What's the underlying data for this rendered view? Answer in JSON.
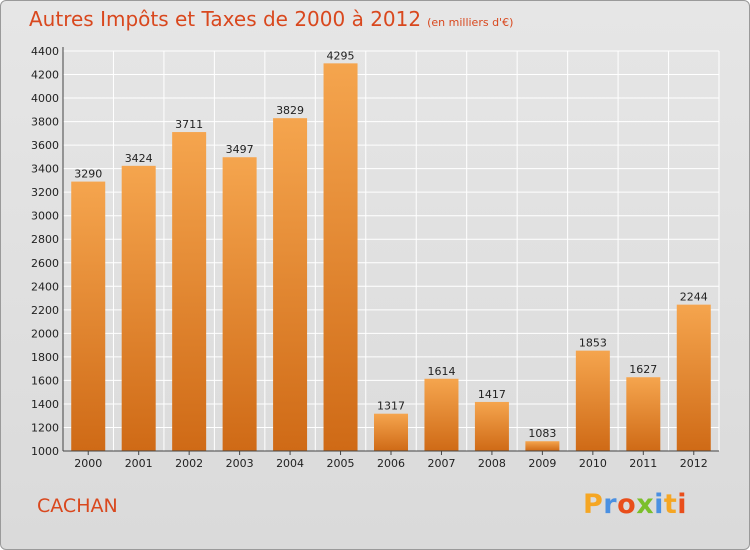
{
  "title": "Autres Impôts et Taxes de 2000 à 2012",
  "unit": "(en milliers d'€)",
  "commune": "CACHAN",
  "logo": {
    "letters": [
      "P",
      "r",
      "o",
      "x",
      "i",
      "t",
      "i"
    ],
    "colors": [
      "#f5a623",
      "#4a90e2",
      "#e94e1b",
      "#7bbf2a",
      "#4a90e2",
      "#f5a623",
      "#e94e1b"
    ]
  },
  "colors": {
    "bar_top": "#f5a54e",
    "bar_bottom": "#cf6a16",
    "title": "#d9481e",
    "grid": "#ffffff"
  },
  "chart_data": {
    "type": "bar",
    "categories": [
      "2000",
      "2001",
      "2002",
      "2003",
      "2004",
      "2005",
      "2006",
      "2007",
      "2008",
      "2009",
      "2010",
      "2011",
      "2012"
    ],
    "values": [
      3290,
      3424,
      3711,
      3497,
      3829,
      4295,
      1317,
      1614,
      1417,
      1083,
      1853,
      1627,
      2244
    ],
    "yticks": [
      1000,
      1200,
      1400,
      1600,
      1800,
      2000,
      2200,
      2400,
      2600,
      2800,
      3000,
      3200,
      3400,
      3600,
      3800,
      4000,
      4200,
      4400
    ],
    "ylim": [
      1000,
      4400
    ],
    "grid": true,
    "xlabel": "",
    "ylabel": ""
  }
}
